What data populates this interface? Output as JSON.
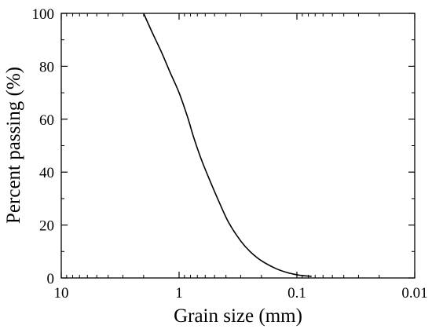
{
  "chart_data": {
    "type": "line",
    "title": "",
    "xlabel": "Grain size (mm)",
    "ylabel": "Percent passing (%)",
    "xscale": "log",
    "x_reversed": true,
    "xlim": [
      10,
      0.01
    ],
    "ylim": [
      0,
      100
    ],
    "grid": false,
    "legend": "none",
    "x_tick_values": [
      10,
      1,
      0.1,
      0.01
    ],
    "x_tick_labels": [
      "10",
      "1",
      "0.1",
      "0.01"
    ],
    "y_tick_values": [
      0,
      20,
      40,
      60,
      80,
      100
    ],
    "y_tick_labels": [
      "0",
      "20",
      "40",
      "60",
      "80",
      "100"
    ],
    "series": [
      {
        "color": "#000000",
        "x": [
          2.0,
          1.7,
          1.4,
          1.2,
          1.0,
          0.85,
          0.75,
          0.65,
          0.55,
          0.45,
          0.38,
          0.3,
          0.25,
          0.2,
          0.15,
          0.12,
          0.1,
          0.09,
          0.08,
          0.075
        ],
        "y": [
          100,
          93,
          85,
          78,
          70,
          61,
          53,
          45,
          37,
          28,
          21,
          14,
          10,
          6.5,
          3.5,
          2,
          1.2,
          0.9,
          0.7,
          0.6
        ]
      }
    ]
  }
}
